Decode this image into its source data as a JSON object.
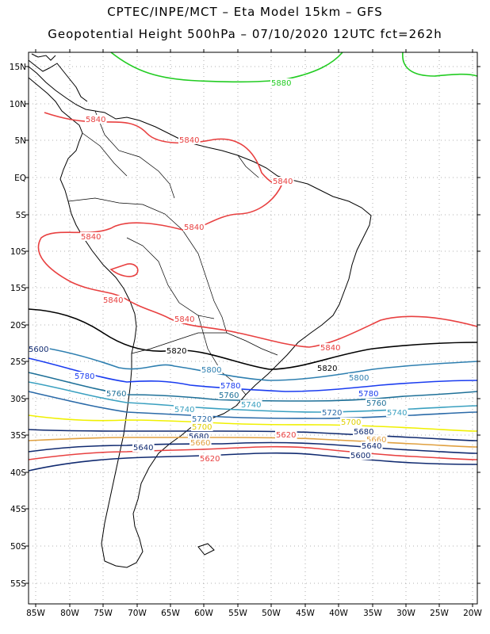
{
  "title_line1": "CPTEC/INPE/MCT –  Eta Model 15km – GFS",
  "title_line2": "Geopotential Height 500hPa – 07/10/2020 12UTC fct=262h",
  "lat_labels": [
    "15N",
    "10N",
    "5N",
    "EQ",
    "5S",
    "10S",
    "15S",
    "20S",
    "25S",
    "30S",
    "35S",
    "40S",
    "45S",
    "50S",
    "55S"
  ],
  "lon_labels": [
    "85W",
    "80W",
    "75W",
    "70W",
    "65W",
    "60W",
    "55W",
    "50W",
    "45W",
    "40W",
    "35W",
    "30W",
    "25W",
    "20W"
  ],
  "grid": true,
  "colors": {
    "c5880": "#22cc22",
    "c5840": "#e84040",
    "c5820": "#000000",
    "c5800": "#2e7fb0",
    "c5780": "#1a3cf0",
    "c5760": "#1e7098",
    "c5740": "#3aa0c0",
    "c5720": "#2a6aa8",
    "c5700": "#f0f000",
    "c5680": "#102a70",
    "c5660": "#e0a040",
    "c5640": "#102a70",
    "c5620": "#e84040",
    "c5600": "#102a70",
    "coast": "#000000"
  },
  "contour_labels": [
    {
      "text": "5880",
      "color": "#22cc22"
    },
    {
      "text": "5840",
      "color": "#e84040"
    },
    {
      "text": "5840",
      "color": "#e84040"
    },
    {
      "text": "5840",
      "color": "#e84040"
    },
    {
      "text": "5840",
      "color": "#e84040"
    },
    {
      "text": "5840",
      "color": "#e84040"
    },
    {
      "text": "5840",
      "color": "#e84040"
    },
    {
      "text": "5840",
      "color": "#e84040"
    },
    {
      "text": "5840",
      "color": "#e84040"
    },
    {
      "text": "5820",
      "color": "#000000"
    },
    {
      "text": "5820",
      "color": "#000000"
    },
    {
      "text": "5800",
      "color": "#2e7fb0"
    },
    {
      "text": "5800",
      "color": "#2e7fb0"
    },
    {
      "text": "5780",
      "color": "#1a3cf0"
    },
    {
      "text": "5780",
      "color": "#1a3cf0"
    },
    {
      "text": "5780",
      "color": "#1a3cf0"
    },
    {
      "text": "5760",
      "color": "#1e7098"
    },
    {
      "text": "5760",
      "color": "#1e7098"
    },
    {
      "text": "5760",
      "color": "#1e7098"
    },
    {
      "text": "5740",
      "color": "#3aa0c0"
    },
    {
      "text": "5740",
      "color": "#3aa0c0"
    },
    {
      "text": "5740",
      "color": "#3aa0c0"
    },
    {
      "text": "5720",
      "color": "#2a6aa8"
    },
    {
      "text": "5720",
      "color": "#2a6aa8"
    },
    {
      "text": "5700",
      "color": "#e0d000"
    },
    {
      "text": "5700",
      "color": "#e0d000"
    },
    {
      "text": "5680",
      "color": "#102a70"
    },
    {
      "text": "5680",
      "color": "#102a70"
    },
    {
      "text": "5660",
      "color": "#e0a040"
    },
    {
      "text": "5660",
      "color": "#e0a040"
    },
    {
      "text": "5640",
      "color": "#102a70"
    },
    {
      "text": "5640",
      "color": "#102a70"
    },
    {
      "text": "5620",
      "color": "#e84040"
    },
    {
      "text": "5620",
      "color": "#e84040"
    },
    {
      "text": "5600",
      "color": "#102a70"
    },
    {
      "text": "5600",
      "color": "#102a70"
    }
  ]
}
